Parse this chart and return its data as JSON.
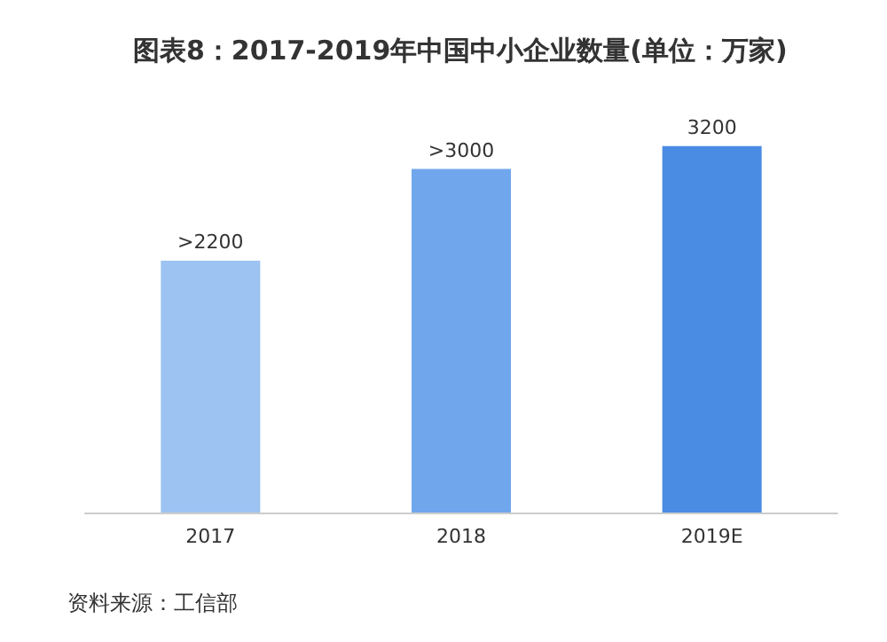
{
  "chart_data": {
    "type": "bar",
    "title": "图表8：2017-2019年中国中小企业数量(单位：万家)",
    "categories": [
      "2017",
      "2018",
      "2019E"
    ],
    "values": [
      2200,
      3000,
      3200
    ],
    "value_labels": [
      ">2200",
      ">3000",
      "3200"
    ],
    "colors": [
      "#9dc3f2",
      "#70a6ec",
      "#4a8be3"
    ],
    "annotations": [
      "资料来源：工信部"
    ]
  }
}
